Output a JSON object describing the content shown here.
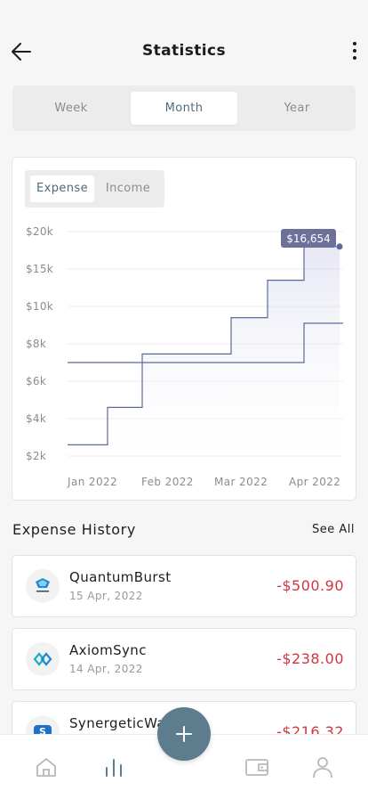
{
  "header": {
    "title": "Statistics",
    "back_icon": "arrow-left-icon",
    "menu_icon": "more-vertical-icon"
  },
  "period_tabs": {
    "items": [
      "Week",
      "Month",
      "Year"
    ],
    "selected": "Month"
  },
  "chart_toggle": {
    "items": [
      "Expense",
      "Income"
    ],
    "selected": "Expense"
  },
  "chart_data": {
    "type": "line",
    "step": true,
    "title": "",
    "xlabel": "",
    "ylabel": "",
    "y_tick_labels": [
      "$20k",
      "$15k",
      "$10k",
      "$8k",
      "$6k",
      "$4k",
      "$2k"
    ],
    "x_tick_labels": [
      "Jan 2022",
      "Feb 2022",
      "Mar 2022",
      "Apr 2022"
    ],
    "grid": true,
    "series": [
      {
        "color": "#5b6a9a",
        "fill": true,
        "steps": [
          {
            "from": "Jan 2022",
            "level_tick_index": 5.7
          },
          {
            "from": "Jan 2022 (late)",
            "level_tick_index": 4.7
          },
          {
            "from": "Feb 2022",
            "level_tick_index": 3.27
          },
          {
            "from": "Mar 2022",
            "level_tick_index": 2.3
          },
          {
            "from": "Mar 2022 (late)",
            "level_tick_index": 1.3
          },
          {
            "from": "Apr 2022",
            "level_tick_index": 0.4
          }
        ],
        "end_value_label": "$16,654",
        "end_value": 16654
      },
      {
        "color": "#5b6a9a",
        "fill": false,
        "steps": [
          {
            "from": "Jan 2022",
            "level_tick_index": 3.5
          },
          {
            "from": "Apr 2022",
            "level_tick_index": 2.45
          }
        ]
      }
    ]
  },
  "history": {
    "title": "Expense History",
    "see_all": "See All",
    "items": [
      {
        "name": "QuantumBurst",
        "date": "15 Apr, 2022",
        "amount": "-$500.90",
        "logo": "quantumburst-logo-icon"
      },
      {
        "name": "AxiomSync",
        "date": "14 Apr, 2022",
        "amount": "-$238.00",
        "logo": "axiomsync-logo-icon"
      },
      {
        "name": "SynergeticWa",
        "date": "",
        "amount": "-$216.32",
        "logo": "synergetic-logo-icon"
      }
    ]
  },
  "bottom_nav": {
    "items": [
      "home-icon",
      "bar-chart-icon",
      "wallet-icon",
      "profile-icon"
    ],
    "active": "bar-chart-icon",
    "fab_icon": "plus-icon"
  },
  "colors": {
    "accent": "#5d7d8e",
    "chart_line": "#5b6a9a",
    "negative": "#d0353f",
    "tab_active_text": "#4e6a7b"
  }
}
